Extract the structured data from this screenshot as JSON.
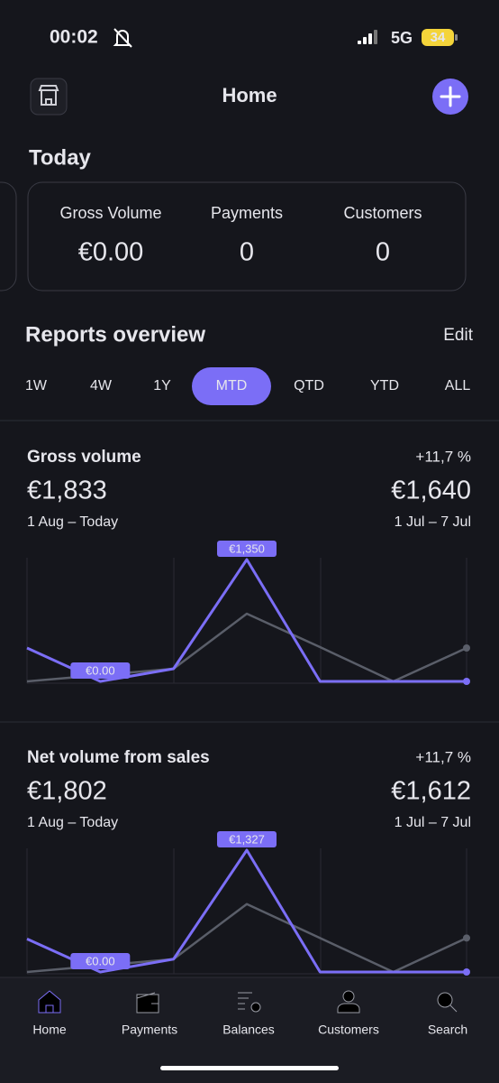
{
  "status_bar": {
    "time": "00:02",
    "network": "5G",
    "battery": "34"
  },
  "header": {
    "title": "Home"
  },
  "today": {
    "title": "Today",
    "stats": [
      {
        "label": "Gross Volume",
        "value": "€0.00"
      },
      {
        "label": "Payments",
        "value": 0
      },
      {
        "label": "Customers",
        "value": 0
      }
    ]
  },
  "reports": {
    "title": "Reports overview",
    "edit": "Edit",
    "periods": [
      "1W",
      "4W",
      "1Y",
      "MTD",
      "QTD",
      "YTD",
      "ALL"
    ],
    "active_period": "MTD",
    "cards": [
      {
        "title": "Gross volume",
        "change": "+11,7 %",
        "current": {
          "value": "€1,833",
          "range": "1 Aug – Today"
        },
        "previous": {
          "value": "€1,640",
          "range": "1 Jul – 7 Jul"
        },
        "chart": {
          "type": "line",
          "series": [
            {
              "color": "#5a5e69",
              "values": [
                0,
                70,
                140,
                750,
                380,
                0,
                370
              ]
            },
            {
              "color": "#7b6ef6",
              "values": [
                370,
                0,
                140,
                1350,
                0,
                0,
                0
              ],
              "value_labels": [
                null,
                "€0.00",
                null,
                "€1,350",
                null,
                null,
                null
              ]
            }
          ]
        }
      },
      {
        "title": "Net volume from sales",
        "change": "+11,7 %",
        "current": {
          "value": "€1,802",
          "range": "1 Aug – Today"
        },
        "previous": {
          "value": "€1,612",
          "range": "1 Jul – 7 Jul"
        },
        "chart": {
          "type": "line",
          "series": [
            {
              "color": "#5a5e69",
              "values": [
                0,
                70,
                140,
                740,
                370,
                0,
                370
              ]
            },
            {
              "color": "#7b6ef6",
              "values": [
                360,
                0,
                140,
                1327,
                0,
                0,
                0
              ],
              "value_labels": [
                null,
                "€0.00",
                null,
                "€1,327",
                null,
                null,
                null
              ]
            }
          ]
        }
      }
    ]
  },
  "tab_bar": {
    "items": [
      "Home",
      "Payments",
      "Balances",
      "Customers",
      "Search"
    ],
    "active": "Home"
  }
}
